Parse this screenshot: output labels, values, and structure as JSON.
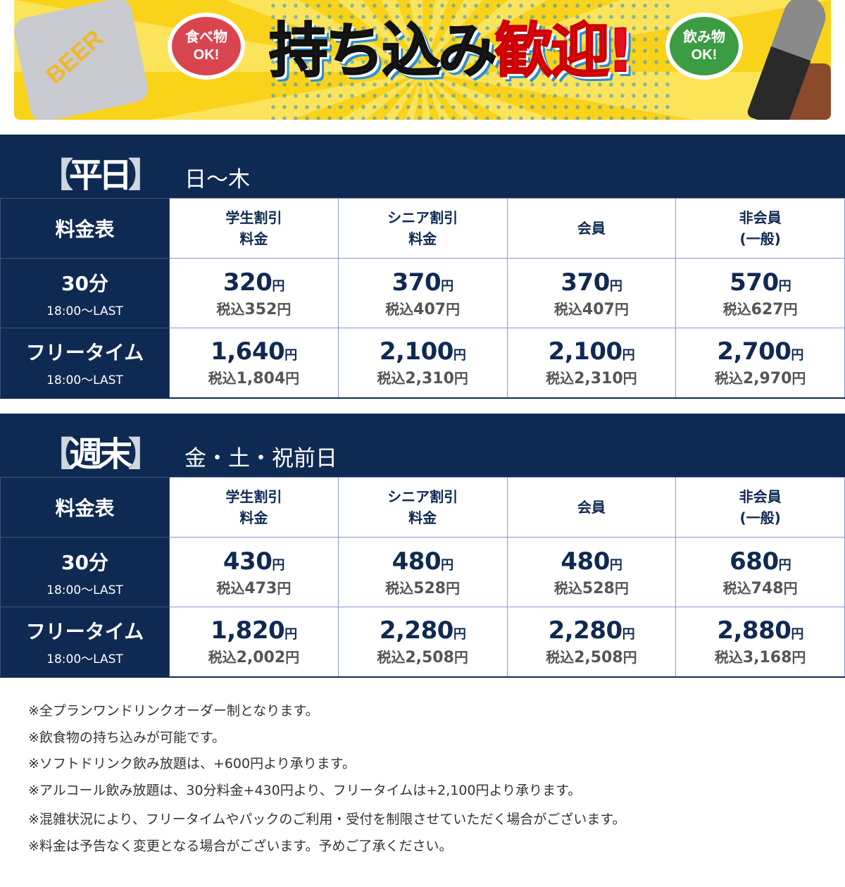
{
  "banner": {
    "title_black": "持ち込み",
    "title_red": "歓迎!",
    "bubble_food": "食べ物\nOK!",
    "bubble_drink": "飲み物\nOK!",
    "can_label": "BEER"
  },
  "colors": {
    "navy": "#0f2a52",
    "red": "#e5101f",
    "yellow": "#f9d21a"
  },
  "tables": [
    {
      "tag": "平日",
      "days": "日〜木",
      "corner": "料金表",
      "columns": [
        "学生割引\n料金",
        "シニア割引\n料金",
        "会員",
        "非会員\n(一般)"
      ],
      "rows": [
        {
          "label": "30分",
          "sub": "18:00〜LAST",
          "prices": [
            {
              "price": "320",
              "tax": "352"
            },
            {
              "price": "370",
              "tax": "407"
            },
            {
              "price": "370",
              "tax": "407"
            },
            {
              "price": "570",
              "tax": "627"
            }
          ]
        },
        {
          "label": "フリータイム",
          "sub": "18:00〜LAST",
          "prices": [
            {
              "price": "1,640",
              "tax": "1,804"
            },
            {
              "price": "2,100",
              "tax": "2,310"
            },
            {
              "price": "2,100",
              "tax": "2,310"
            },
            {
              "price": "2,700",
              "tax": "2,970"
            }
          ]
        }
      ]
    },
    {
      "tag": "週末",
      "days": "金・土・祝前日",
      "corner": "料金表",
      "columns": [
        "学生割引\n料金",
        "シニア割引\n料金",
        "会員",
        "非会員\n(一般)"
      ],
      "rows": [
        {
          "label": "30分",
          "sub": "18:00〜LAST",
          "prices": [
            {
              "price": "430",
              "tax": "473"
            },
            {
              "price": "480",
              "tax": "528"
            },
            {
              "price": "480",
              "tax": "528"
            },
            {
              "price": "680",
              "tax": "748"
            }
          ]
        },
        {
          "label": "フリータイム",
          "sub": "18:00〜LAST",
          "prices": [
            {
              "price": "1,820",
              "tax": "2,002"
            },
            {
              "price": "2,280",
              "tax": "2,508"
            },
            {
              "price": "2,280",
              "tax": "2,508"
            },
            {
              "price": "2,880",
              "tax": "3,168"
            }
          ]
        }
      ]
    }
  ],
  "units": {
    "yen": "円",
    "tax_prefix": "税込"
  },
  "notes": [
    "※全プランワンドリンクオーダー制となります。",
    "※飲食物の持ち込みが可能です。",
    "※ソフトドリンク飲み放題は、+600円より承ります。",
    "※アルコール飲み放題は、30分料金+430円より、フリータイムは+2,100円より承ります。",
    "※混雑状況により、フリータイムやパックのご利用・受付を制限させていただく場合がございます。",
    "※料金は予告なく変更となる場合がございます。予めご了承ください。"
  ]
}
